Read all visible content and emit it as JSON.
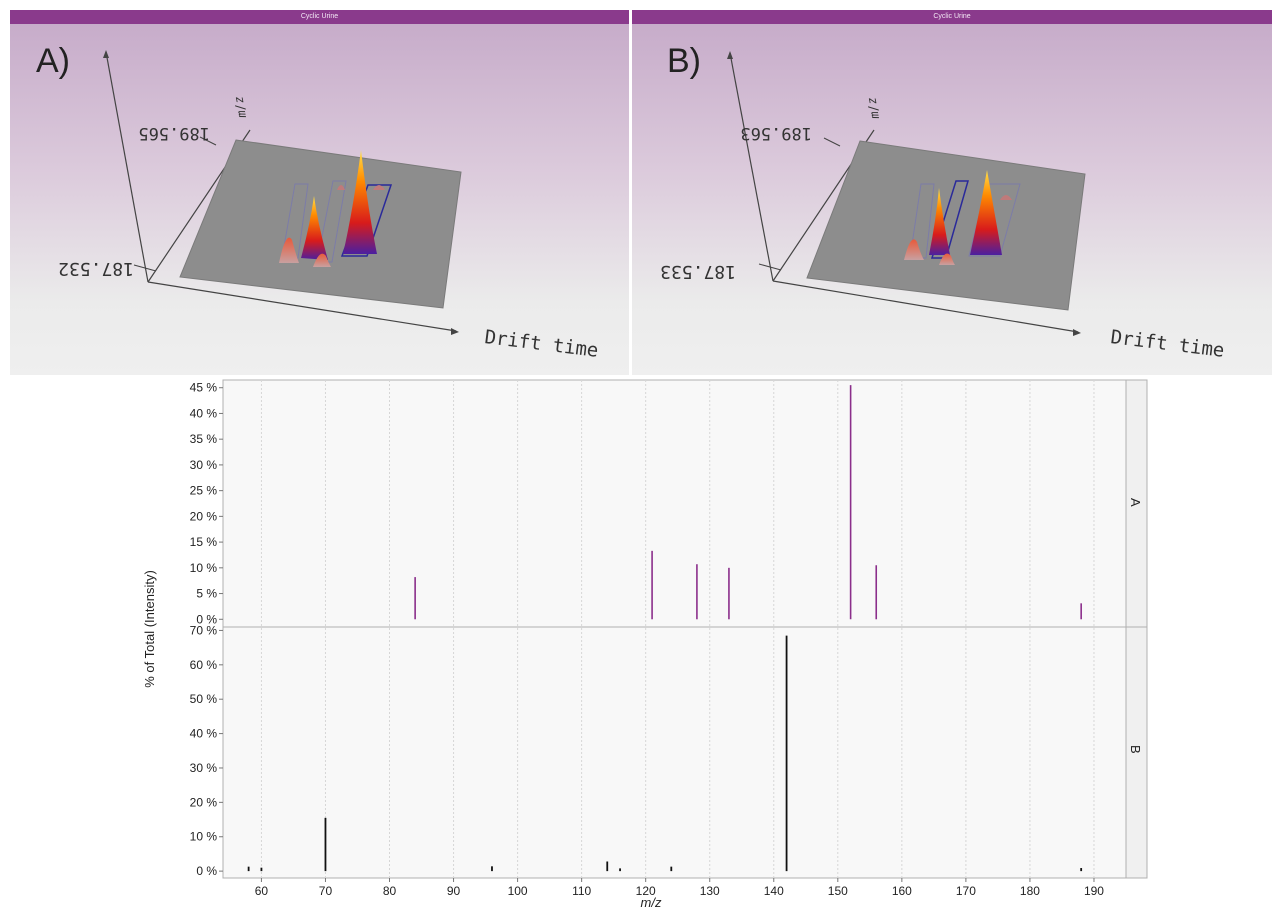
{
  "panels3d": [
    {
      "letter": "A)",
      "window_title": "Cyclic Urine",
      "mz_top": "189.565",
      "mz_bottom": "187.532",
      "mz_axis": "m/z",
      "drift_axis": "Drift time"
    },
    {
      "letter": "B)",
      "window_title": "Cyclic Urine",
      "mz_top": "189.563",
      "mz_bottom": "187.533",
      "mz_axis": "m/z",
      "drift_axis": "Drift time"
    }
  ],
  "chart_data": {
    "type": "bar",
    "ylabel": "% of Total (Intensity)",
    "xlabel": "m/z",
    "xlim": [
      54,
      195
    ],
    "xticks": [
      60,
      70,
      80,
      90,
      100,
      110,
      120,
      130,
      140,
      150,
      160,
      170,
      180,
      190
    ],
    "grid": true,
    "facets": [
      {
        "label": "A",
        "color": "#8b2e8b",
        "ylim": [
          -1.5,
          46.5
        ],
        "yticks": [
          0,
          5,
          10,
          15,
          20,
          25,
          30,
          35,
          40,
          45
        ],
        "ytick_labels": [
          "0 %",
          "5 %",
          "10 %",
          "15 %",
          "20 %",
          "25 %",
          "30 %",
          "35 %",
          "40 %",
          "45 %"
        ],
        "x": [
          84,
          121,
          128,
          133,
          152,
          156,
          188
        ],
        "values": [
          8.2,
          13.3,
          10.7,
          10.0,
          45.5,
          10.5,
          3.1
        ]
      },
      {
        "label": "B",
        "color": "#111111",
        "ylim": [
          -2,
          71
        ],
        "yticks": [
          0,
          10,
          20,
          30,
          40,
          50,
          60,
          70
        ],
        "ytick_labels": [
          "0 %",
          "10 %",
          "20 %",
          "30 %",
          "40 %",
          "50 %",
          "60 %",
          "70 %"
        ],
        "x": [
          58,
          60,
          70,
          96,
          114,
          116,
          124,
          142,
          188
        ],
        "values": [
          1.3,
          1.0,
          15.5,
          1.4,
          2.8,
          0.8,
          1.3,
          68.5,
          0.9
        ]
      }
    ]
  }
}
